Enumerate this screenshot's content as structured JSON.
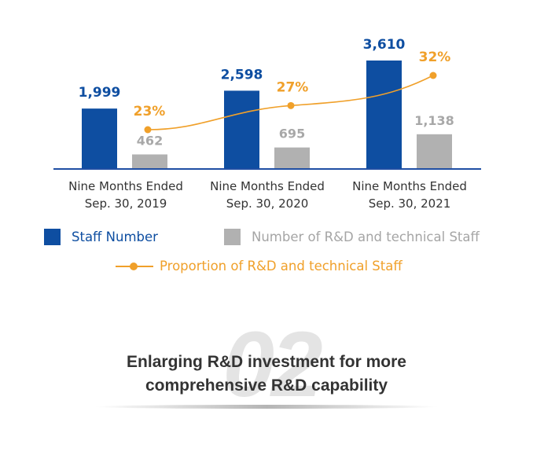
{
  "chart_data": {
    "type": "bar",
    "categories": [
      [
        "Nine Months Ended",
        "Sep. 30, 2019"
      ],
      [
        "Nine Months Ended",
        "Sep. 30, 2020"
      ],
      [
        "Nine Months Ended",
        "Sep. 30, 2021"
      ]
    ],
    "series": [
      {
        "name": "Staff Number",
        "kind": "bar",
        "color": "#0e4ea1",
        "values": [
          1999,
          2598,
          3610
        ],
        "labels": [
          "1,999",
          "2,598",
          "3,610"
        ]
      },
      {
        "name": "Number of R&D and technical Staff",
        "kind": "bar",
        "color": "#b1b1b1",
        "values": [
          462,
          695,
          1138
        ],
        "labels": [
          "462",
          "695",
          "1,138"
        ]
      },
      {
        "name": "Proportion of R&D and technical Staff",
        "kind": "line",
        "color": "#f0a02a",
        "values": [
          23,
          27,
          32
        ],
        "labels": [
          "23%",
          "27%",
          "32%"
        ]
      }
    ],
    "title": "",
    "xlabel": "",
    "ylabel": "",
    "ylim": [
      0,
      3610
    ],
    "grid": false,
    "legend_position": "bottom"
  },
  "legend": {
    "staff_number": "Staff Number",
    "rd_staff": "Number of R&D and technical Staff",
    "rd_proportion": "Proportion of R&D and technical Staff"
  },
  "caption": {
    "number": "02",
    "line1": "Enlarging R&D investment for more",
    "line2": "comprehensive R&D capability"
  },
  "colors": {
    "primary_blue": "#0e4ea1",
    "gray": "#b1b1b1",
    "orange": "#f0a02a",
    "baseline": "#1f4ea3"
  }
}
